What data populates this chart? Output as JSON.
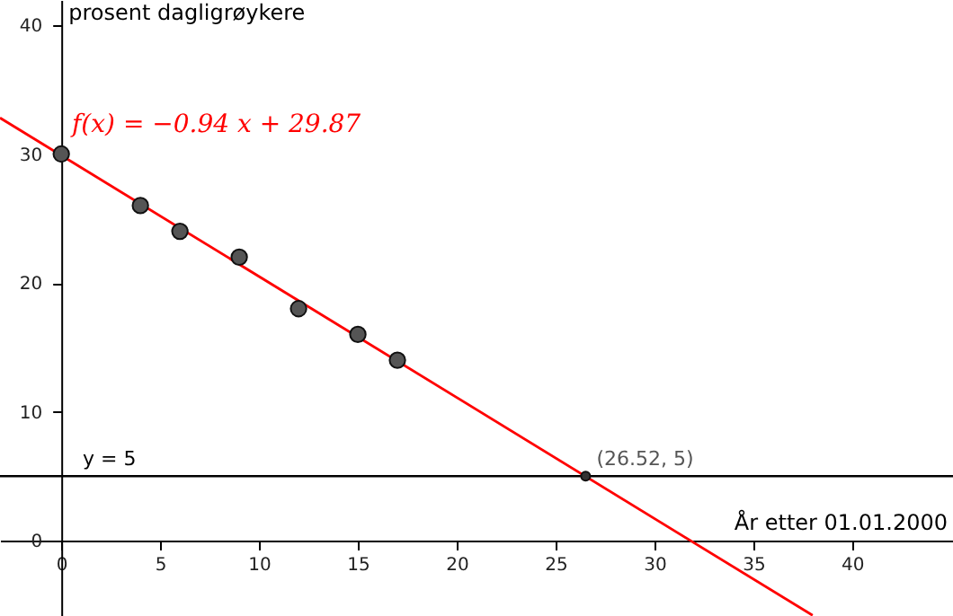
{
  "chart_data": {
    "type": "scatter",
    "xlabel": "År etter 01.01.2000",
    "ylabel": "prosent dagligrøykere",
    "xlim": [
      -3.1,
      45.1
    ],
    "ylim": [
      -5.85,
      41.95
    ],
    "xticks": [
      0,
      5,
      10,
      15,
      20,
      25,
      30,
      35,
      40
    ],
    "yticks": [
      0,
      10,
      20,
      30,
      40
    ],
    "grid": false,
    "marker": "circle",
    "series": [
      {
        "color": "#555555",
        "x": [
          0,
          4,
          6,
          9,
          12,
          15,
          17
        ],
        "values": [
          30,
          26,
          24,
          22,
          18,
          16,
          14
        ]
      },
      {
        "type": "line",
        "marker": "none",
        "name": "f(x) = −0.94 x + 29.87",
        "color": "#ff0000",
        "x": [
          -3.1,
          38
        ],
        "values": [
          32.8,
          -5.8
        ]
      },
      {
        "color": "#333333",
        "x": [
          26.52
        ],
        "values": [
          5
        ]
      }
    ],
    "ref_lines": [
      {
        "axis": "y",
        "value": 5,
        "label": "y = 5",
        "color": "#000000"
      }
    ],
    "annotations": [
      {
        "text": "(26.52, 5)",
        "x": 26.52,
        "y": 5
      }
    ]
  }
}
